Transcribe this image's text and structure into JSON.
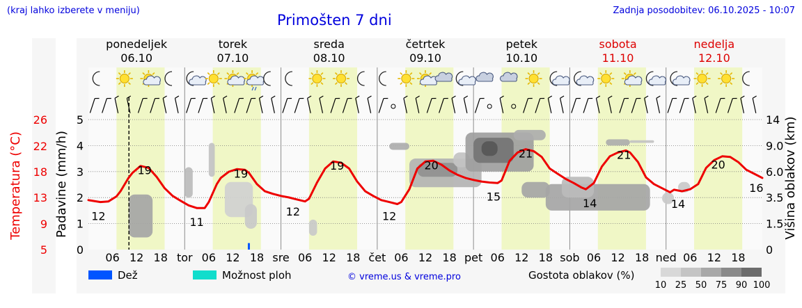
{
  "header": {
    "note": "(kraj lahko izberete v meniju)",
    "title": "Primošten 7 dni",
    "updated": "Zadnja posodobitev: 06.10.2025 - 10:07"
  },
  "days": [
    {
      "name": "ponedeljek",
      "date": "06.10",
      "short": "",
      "weekend": false
    },
    {
      "name": "torek",
      "date": "07.10",
      "short": "tor",
      "weekend": false
    },
    {
      "name": "sreda",
      "date": "08.10",
      "short": "sre",
      "weekend": false
    },
    {
      "name": "četrtek",
      "date": "09.10",
      "short": "čet",
      "weekend": false
    },
    {
      "name": "petek",
      "date": "10.10",
      "short": "pet",
      "weekend": false
    },
    {
      "name": "sobota",
      "date": "11.10",
      "short": "sob",
      "weekend": true
    },
    {
      "name": "nedelja",
      "date": "12.10",
      "short": "ned",
      "weekend": true
    }
  ],
  "hour_ticks": [
    "06",
    "12",
    "18"
  ],
  "weather_icons": [
    [
      "moon",
      "sun",
      "sun-cloud",
      "moon"
    ],
    [
      "moon-cloud",
      "sun",
      "sun-cloud",
      "sun-cloud-rain",
      "moon"
    ],
    [
      "moon",
      "sun",
      "sun",
      "moon"
    ],
    [
      "moon",
      "sun",
      "sun-cloud",
      "cloud",
      "moon-cloud"
    ],
    [
      "cloud",
      "cloud",
      "sun",
      "moon-cloud"
    ],
    [
      "moon-cloud",
      "sun",
      "sun-cloud",
      "moon-cloud"
    ],
    [
      "moon-cloud",
      "sun",
      "sun",
      "moon"
    ]
  ],
  "colors": {
    "temperature": "#ee0000",
    "rain": "#0055ff",
    "showers": "#11ddcc",
    "weekend": "#dd0000",
    "day_band": "#f0f7c6",
    "link": "#0000dd"
  },
  "chart_data": {
    "type": "line",
    "x_unit": "hours since 06.10 00:00",
    "x_range": [
      0,
      168
    ],
    "current_time_h": 10.1,
    "left_axis": {
      "label": "Padavine (mm/h)",
      "ticks": [
        "0",
        "1",
        "2",
        "3",
        "4",
        "5"
      ],
      "range": [
        0,
        5
      ]
    },
    "temp_axis": {
      "label": "Temperatura (°C)",
      "ticks": [
        "5",
        "9",
        "13",
        "18",
        "22",
        "26"
      ]
    },
    "right_axis": {
      "label": "Višina oblakov (km)",
      "ticks": [
        "0",
        "1.5",
        "3.5",
        "6.0",
        "9.0",
        "14"
      ]
    },
    "temperature_series": [
      [
        0,
        12.6
      ],
      [
        3,
        12.3
      ],
      [
        5,
        12.4
      ],
      [
        7,
        13.2
      ],
      [
        8,
        14.2
      ],
      [
        10,
        16.8
      ],
      [
        11,
        17.8
      ],
      [
        13,
        18.9
      ],
      [
        15,
        18.6
      ],
      [
        17,
        17.0
      ],
      [
        19,
        14.8
      ],
      [
        21,
        13.3
      ],
      [
        23,
        12.5
      ],
      [
        25,
        11.8
      ],
      [
        27,
        11.4
      ],
      [
        29,
        11.4
      ],
      [
        30,
        12.3
      ],
      [
        32,
        15.6
      ],
      [
        33,
        16.8
      ],
      [
        35,
        18.0
      ],
      [
        37,
        18.4
      ],
      [
        39,
        18.3
      ],
      [
        40,
        17.8
      ],
      [
        42,
        15.6
      ],
      [
        44,
        14.2
      ],
      [
        46,
        13.7
      ],
      [
        48,
        13.3
      ],
      [
        50,
        13.0
      ],
      [
        52,
        12.7
      ],
      [
        54,
        12.4
      ],
      [
        55,
        12.8
      ],
      [
        57,
        15.9
      ],
      [
        59,
        18.5
      ],
      [
        61,
        19.6
      ],
      [
        63,
        19.4
      ],
      [
        65,
        18.5
      ],
      [
        67,
        16.1
      ],
      [
        69,
        14.2
      ],
      [
        71,
        13.3
      ],
      [
        73,
        12.6
      ],
      [
        75,
        12.3
      ],
      [
        77,
        12.0
      ],
      [
        78,
        12.3
      ],
      [
        80,
        14.6
      ],
      [
        82,
        18.5
      ],
      [
        84,
        19.6
      ],
      [
        86,
        19.7
      ],
      [
        88,
        19.1
      ],
      [
        90,
        18.2
      ],
      [
        92,
        17.4
      ],
      [
        94,
        16.8
      ],
      [
        96,
        16.4
      ],
      [
        98,
        16.1
      ],
      [
        100,
        15.9
      ],
      [
        102,
        15.8
      ],
      [
        103,
        16.3
      ],
      [
        105,
        19.7
      ],
      [
        107,
        21.0
      ],
      [
        109,
        21.5
      ],
      [
        111,
        21.2
      ],
      [
        113,
        20.3
      ],
      [
        115,
        18.5
      ],
      [
        117,
        17.6
      ],
      [
        119,
        16.6
      ],
      [
        121,
        15.8
      ],
      [
        123,
        14.9
      ],
      [
        124,
        14.6
      ],
      [
        126,
        15.8
      ],
      [
        128,
        18.8
      ],
      [
        130,
        20.4
      ],
      [
        132,
        21.0
      ],
      [
        134,
        21.3
      ],
      [
        135,
        21.0
      ],
      [
        137,
        19.5
      ],
      [
        139,
        16.9
      ],
      [
        141,
        15.6
      ],
      [
        143,
        14.8
      ],
      [
        145,
        14.0
      ],
      [
        146,
        14.5
      ],
      [
        148,
        14.2
      ],
      [
        150,
        14.6
      ],
      [
        152,
        15.6
      ],
      [
        154,
        18.6
      ],
      [
        156,
        19.8
      ],
      [
        158,
        20.4
      ],
      [
        160,
        20.3
      ],
      [
        162,
        19.5
      ],
      [
        164,
        18.3
      ],
      [
        166,
        17.6
      ],
      [
        168,
        16.8
      ]
    ],
    "temperature_labels": [
      {
        "t": 2.5,
        "value": "12"
      },
      {
        "t": 14,
        "value": "19"
      },
      {
        "t": 27,
        "value": "11"
      },
      {
        "t": 38,
        "value": "19"
      },
      {
        "t": 51,
        "value": "12"
      },
      {
        "t": 62,
        "value": "19"
      },
      {
        "t": 75,
        "value": "12"
      },
      {
        "t": 85.5,
        "value": "20"
      },
      {
        "t": 101,
        "value": "15"
      },
      {
        "t": 109,
        "value": "21"
      },
      {
        "t": 125,
        "value": "14"
      },
      {
        "t": 133.5,
        "value": "21"
      },
      {
        "t": 147,
        "value": "14"
      },
      {
        "t": 157,
        "value": "20"
      },
      {
        "t": 166.5,
        "value": "16"
      }
    ],
    "precipitation": [
      {
        "t": 40,
        "rain_mm": 0.25
      }
    ],
    "clouds": [
      {
        "t0": 10,
        "t1": 16,
        "k0": 0.7,
        "k1": 3.8,
        "density": 40
      },
      {
        "t0": 24,
        "t1": 26,
        "k0": 3.5,
        "k1": 6.5,
        "density": 25
      },
      {
        "t0": 30,
        "t1": 31.5,
        "k0": 5.5,
        "k1": 9.5,
        "density": 20
      },
      {
        "t0": 34,
        "t1": 41,
        "k0": 2.0,
        "k1": 5.0,
        "density": 10
      },
      {
        "t0": 39,
        "t1": 42,
        "k0": 1.2,
        "k1": 3.0,
        "density": 15
      },
      {
        "t0": 55,
        "t1": 57,
        "k0": 0.8,
        "k1": 1.8,
        "density": 15
      },
      {
        "t0": 75,
        "t1": 80,
        "k0": 8.5,
        "k1": 9.5,
        "density": 35
      },
      {
        "t0": 80,
        "t1": 98,
        "k0": 4.5,
        "k1": 7.5,
        "density": 30
      },
      {
        "t0": 82,
        "t1": 92,
        "k0": 5.5,
        "k1": 7.0,
        "density": 55
      },
      {
        "t0": 91,
        "t1": 95,
        "k0": 6.5,
        "k1": 8.2,
        "density": 20
      },
      {
        "t0": 94,
        "t1": 111,
        "k0": 6.0,
        "k1": 11.5,
        "density": 45
      },
      {
        "t0": 96,
        "t1": 106,
        "k0": 7.0,
        "k1": 10.5,
        "density": 75
      },
      {
        "t0": 98,
        "t1": 102,
        "k0": 7.8,
        "k1": 9.8,
        "density": 95
      },
      {
        "t0": 106,
        "t1": 114,
        "k0": 10.0,
        "k1": 12.0,
        "density": 35
      },
      {
        "t0": 108,
        "t1": 115,
        "k0": 3.5,
        "k1": 5.0,
        "density": 40
      },
      {
        "t0": 114,
        "t1": 140,
        "k0": 2.5,
        "k1": 4.8,
        "density": 40
      },
      {
        "t0": 118,
        "t1": 126,
        "k0": 3.5,
        "k1": 5.5,
        "density": 25
      },
      {
        "t0": 129,
        "t1": 135,
        "k0": 9.0,
        "k1": 10.2,
        "density": 35
      },
      {
        "t0": 135,
        "t1": 141,
        "k0": 9.5,
        "k1": 10.0,
        "density": 20
      },
      {
        "t0": 143,
        "t1": 146,
        "k0": 3.0,
        "k1": 4.0,
        "density": 15
      },
      {
        "t0": 147,
        "t1": 150,
        "k0": 4.0,
        "k1": 5.0,
        "density": 15
      }
    ]
  },
  "legend": {
    "rain": "Dež",
    "showers": "Možnost ploh",
    "credit": "© vreme.us & vreme.pro",
    "cloud_density_title": "Gostota oblakov (%)",
    "cloud_density_steps": [
      "10",
      "25",
      "50",
      "75",
      "90",
      "100"
    ]
  }
}
